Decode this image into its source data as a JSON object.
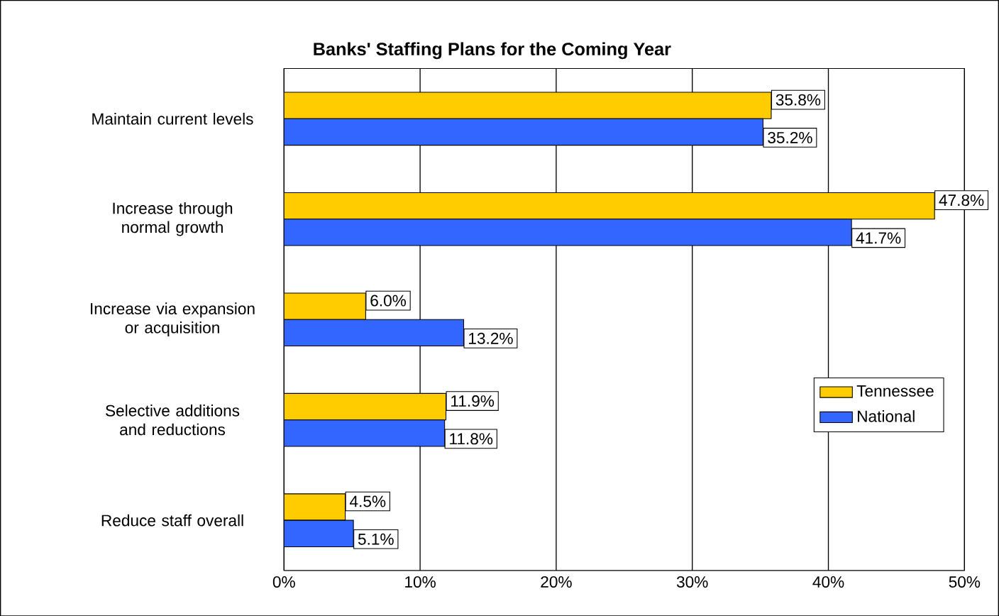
{
  "chart_data": {
    "type": "bar",
    "orientation": "horizontal",
    "title": "Banks' Staffing Plans for the Coming Year",
    "categories": [
      "Maintain current levels",
      "Increase through normal growth",
      "Increase via expansion or acquisition",
      "Selective additions and reductions",
      "Reduce staff overall"
    ],
    "series": [
      {
        "name": "Tennessee",
        "color": "#ffcc00",
        "values": [
          35.8,
          47.8,
          6.0,
          11.9,
          4.5
        ],
        "value_labels": [
          "35.8%",
          "47.8%",
          "6.0%",
          "11.9%",
          "4.5%"
        ]
      },
      {
        "name": "National",
        "color": "#3366ff",
        "values": [
          35.2,
          41.7,
          13.2,
          11.8,
          5.1
        ],
        "value_labels": [
          "35.2%",
          "41.7%",
          "13.2%",
          "11.8%",
          "5.1%"
        ]
      }
    ],
    "xlim": [
      0,
      50
    ],
    "xticks": [
      {
        "value": 0,
        "label": "0%"
      },
      {
        "value": 10,
        "label": "10%"
      },
      {
        "value": 20,
        "label": "20%"
      },
      {
        "value": 30,
        "label": "30%"
      },
      {
        "value": 40,
        "label": "40%"
      },
      {
        "value": 50,
        "label": "50%"
      }
    ],
    "grid": "x",
    "legend": "right"
  }
}
